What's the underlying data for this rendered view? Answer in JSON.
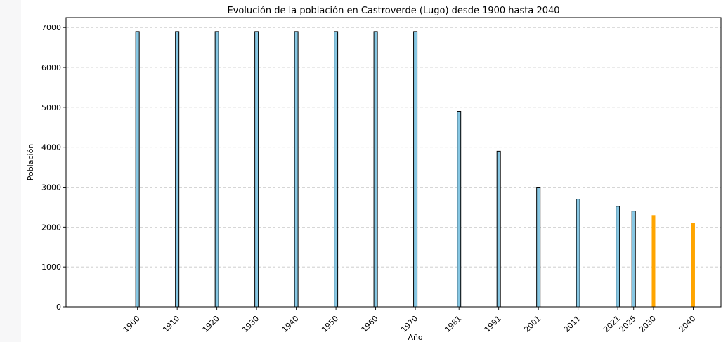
{
  "chart_data": {
    "type": "bar",
    "title": "Evolución de la población en Castroverde (Lugo) desde 1900 hasta 2040",
    "xlabel": "Año",
    "ylabel": "Población",
    "x": [
      1900,
      1910,
      1920,
      1930,
      1940,
      1950,
      1960,
      1970,
      1981,
      1991,
      2001,
      2011,
      2021,
      2025,
      2030,
      2040
    ],
    "values": [
      6900,
      6900,
      6900,
      6900,
      6900,
      6900,
      6900,
      6900,
      4900,
      3900,
      3000,
      2700,
      2520,
      2400,
      2300,
      2100
    ],
    "projected": [
      false,
      false,
      false,
      false,
      false,
      false,
      false,
      false,
      false,
      false,
      false,
      false,
      false,
      false,
      true,
      true
    ],
    "xlim": [
      1882,
      2047
    ],
    "ylim": [
      0,
      7250
    ],
    "yticks": [
      0,
      1000,
      2000,
      3000,
      4000,
      5000,
      6000,
      7000
    ],
    "grid": "y-dashed",
    "colors": {
      "actual": "#87c7e3",
      "projected": "#ffa500",
      "edge": "#000000",
      "grid": "#c8c8c8"
    }
  }
}
